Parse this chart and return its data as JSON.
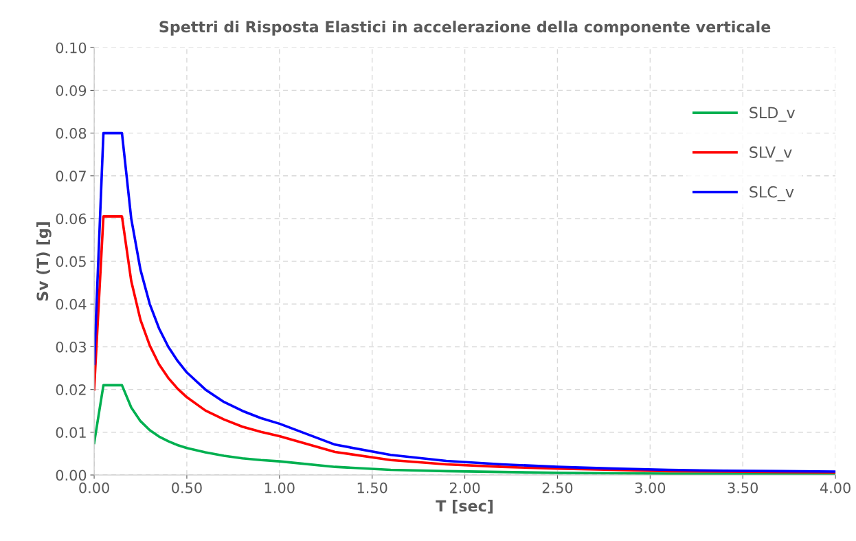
{
  "chart_data": {
    "type": "line",
    "title": "Spettri di Risposta Elastici in accelerazione della componente verticale",
    "xlabel": "T [sec]",
    "ylabel": "Sv (T) [g]",
    "x": [
      0,
      0.05,
      0.15,
      0.2,
      0.25,
      0.3,
      0.35,
      0.4,
      0.45,
      0.5,
      0.6,
      0.7,
      0.8,
      0.9,
      1.0,
      1.3,
      1.6,
      1.9,
      2.2,
      2.5,
      2.8,
      3.1,
      3.4,
      3.7,
      4.0
    ],
    "series": [
      {
        "name": "SLD_v",
        "color": "#00b050",
        "values": [
          0.0075,
          0.021,
          0.021,
          0.0158,
          0.0126,
          0.0105,
          0.009,
          0.0079,
          0.007,
          0.0063,
          0.0053,
          0.0045,
          0.0039,
          0.0035,
          0.0032,
          0.0019,
          0.0012,
          0.0009,
          0.0007,
          0.0005,
          0.0004,
          0.0003,
          0.0003,
          0.0002,
          0.0002
        ]
      },
      {
        "name": "SLV_v",
        "color": "#ff0000",
        "values": [
          0.02,
          0.0605,
          0.0605,
          0.0454,
          0.0363,
          0.0303,
          0.0259,
          0.0227,
          0.0202,
          0.0182,
          0.0151,
          0.013,
          0.0113,
          0.0101,
          0.0091,
          0.0054,
          0.0035,
          0.0025,
          0.0019,
          0.0015,
          0.0012,
          0.0009,
          0.0008,
          0.0007,
          0.0006
        ]
      },
      {
        "name": "SLC_v",
        "color": "#0000ff",
        "values": [
          0.026,
          0.08,
          0.08,
          0.06,
          0.048,
          0.04,
          0.0343,
          0.03,
          0.0267,
          0.024,
          0.02,
          0.0171,
          0.015,
          0.0133,
          0.012,
          0.0071,
          0.0047,
          0.0033,
          0.0025,
          0.0019,
          0.0015,
          0.0012,
          0.001,
          0.0009,
          0.0008
        ]
      }
    ],
    "xlim": [
      0,
      4
    ],
    "xticks": [
      {
        "value": 0,
        "label": "0.00"
      },
      {
        "value": 0.5,
        "label": "0.50"
      },
      {
        "value": 1,
        "label": "1.00"
      },
      {
        "value": 1.5,
        "label": "1.50"
      },
      {
        "value": 2,
        "label": "2.00"
      },
      {
        "value": 2.5,
        "label": "2.50"
      },
      {
        "value": 3,
        "label": "3.00"
      },
      {
        "value": 3.5,
        "label": "3.50"
      },
      {
        "value": 4,
        "label": "4.00"
      }
    ],
    "ylim": [
      0,
      0.1
    ],
    "yticks": [
      {
        "value": 0,
        "label": "0.00"
      },
      {
        "value": 0.01,
        "label": "0.01"
      },
      {
        "value": 0.02,
        "label": "0.02"
      },
      {
        "value": 0.03,
        "label": "0.03"
      },
      {
        "value": 0.04,
        "label": "0.04"
      },
      {
        "value": 0.05,
        "label": "0.05"
      },
      {
        "value": 0.06,
        "label": "0.06"
      },
      {
        "value": 0.07,
        "label": "0.07"
      },
      {
        "value": 0.08,
        "label": "0.08"
      },
      {
        "value": 0.09,
        "label": "0.09"
      },
      {
        "value": 0.1,
        "label": "0.10"
      }
    ],
    "grid": true,
    "legend": "top right",
    "line_style": "solid",
    "marker": "none"
  }
}
